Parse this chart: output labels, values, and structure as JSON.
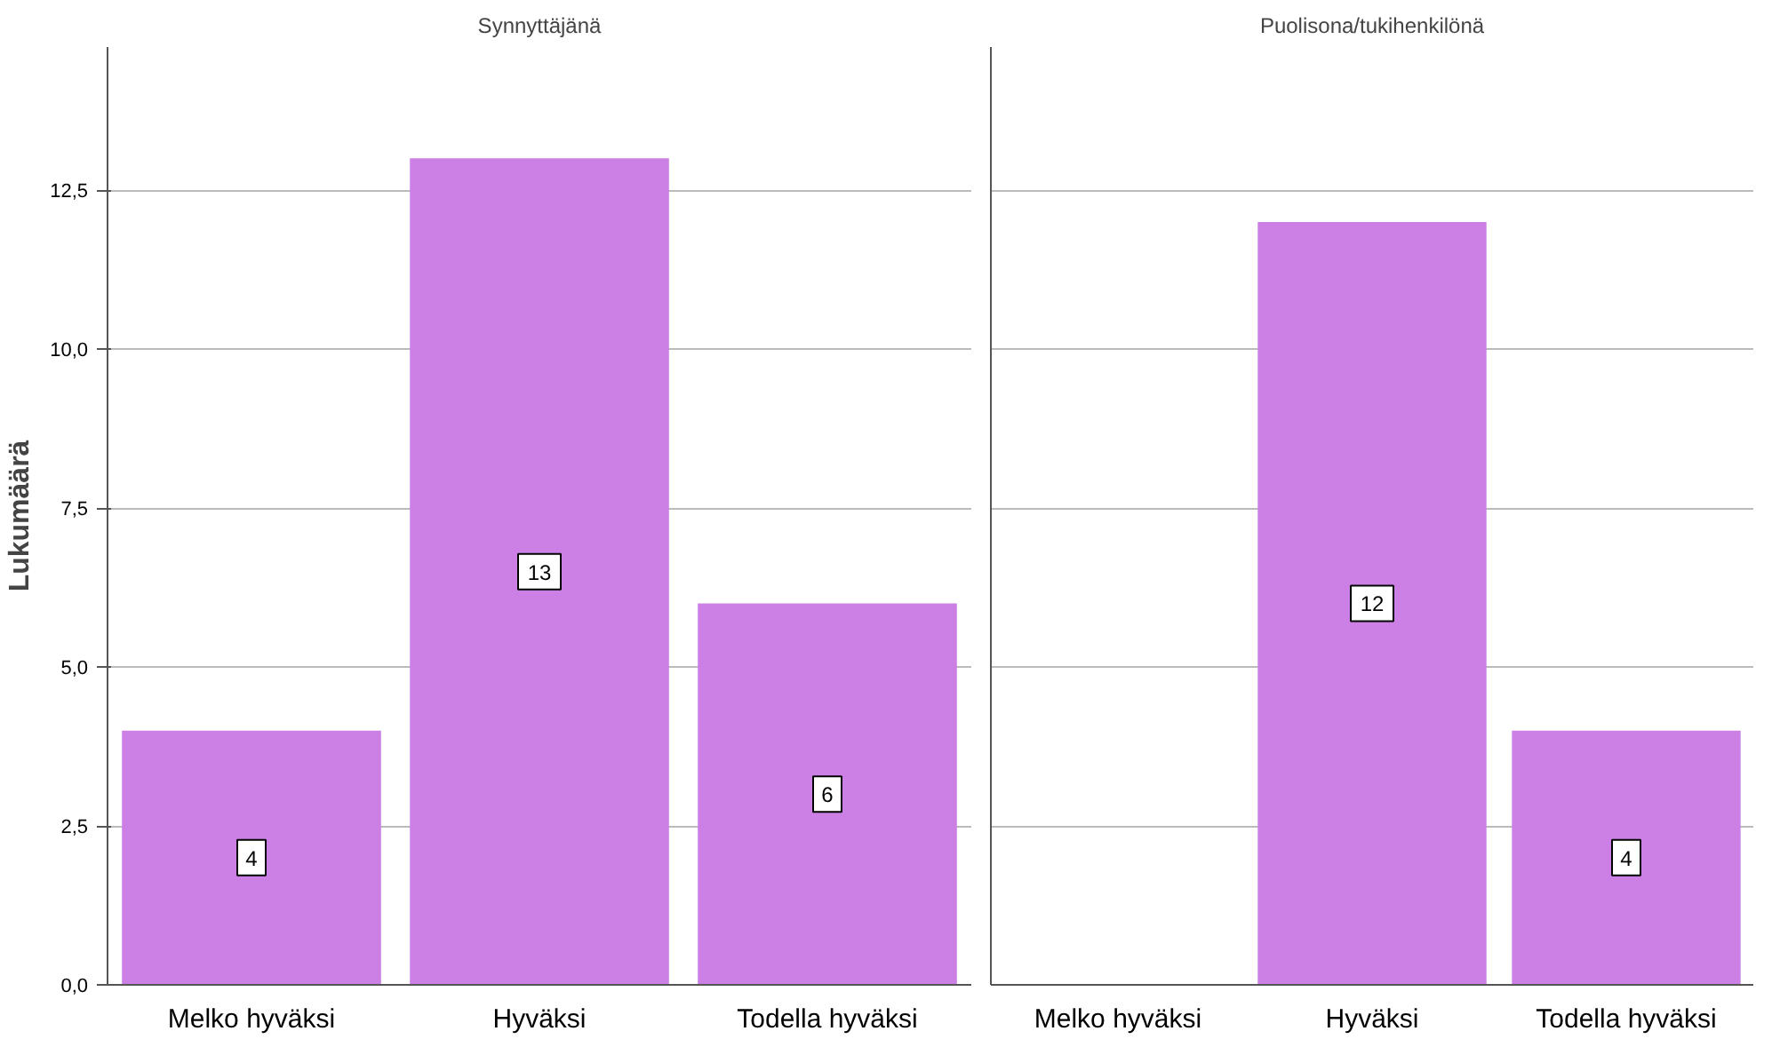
{
  "chart_data": [
    {
      "type": "bar",
      "title": "Synnyttäjänä",
      "ylabel": "Lukumäärä",
      "categories": [
        "Melko hyväksi",
        "Hyväksi",
        "Todella hyväksi"
      ],
      "values": [
        4,
        13,
        6
      ],
      "color": "#cc80e6",
      "ylim": [
        0,
        14.75
      ],
      "yticks": [
        {
          "value": 0,
          "label": "0,0"
        },
        {
          "value": 2.5,
          "label": "2,5"
        },
        {
          "value": 5,
          "label": "5,0"
        },
        {
          "value": 7.5,
          "label": "7,5"
        },
        {
          "value": 10,
          "label": "10,0"
        },
        {
          "value": 12.5,
          "label": "12,5"
        }
      ],
      "grid": "y",
      "data_labels": true
    },
    {
      "type": "bar",
      "title": "Puolisona/tukihenkilönä",
      "categories": [
        "Melko hyväksi",
        "Hyväksi",
        "Todella hyväksi"
      ],
      "values": [
        null,
        12,
        4
      ],
      "color": "#cc80e6",
      "ylim": [
        0,
        14.75
      ],
      "yticks": [
        0,
        2.5,
        5,
        7.5,
        10,
        12.5
      ],
      "grid": "y",
      "data_labels": true,
      "tick_labels": "x"
    }
  ]
}
